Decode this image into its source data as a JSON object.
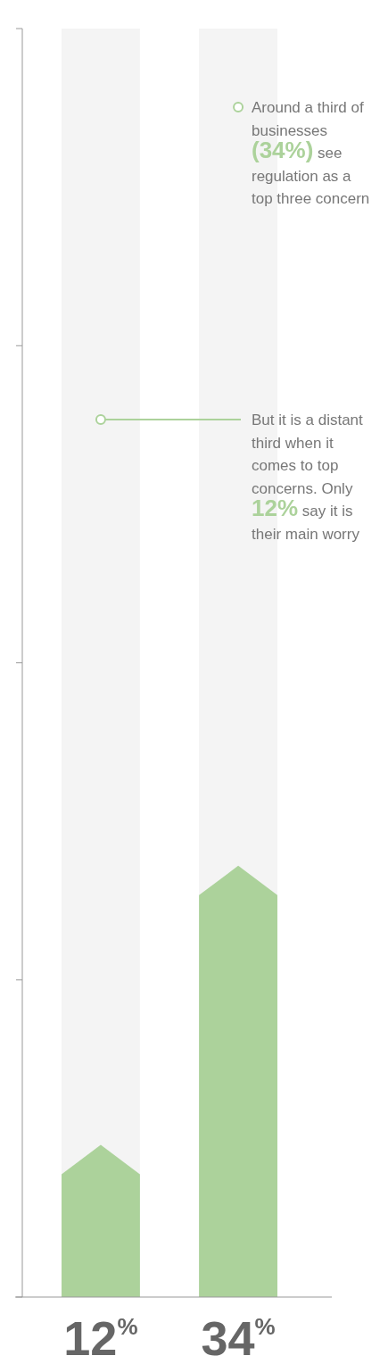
{
  "chart_data": {
    "type": "bar",
    "categories": [
      null,
      null
    ],
    "values": [
      12,
      34
    ],
    "color": "#acd29b",
    "value_labels": [
      "12$^{%}$",
      "34$^{%}$"
    ],
    "ylim": [
      0,
      100
    ],
    "yticks": [
      {
        "value": 0,
        "label": null
      },
      {
        "value": 25,
        "label": null
      },
      {
        "value": 50,
        "label": null
      },
      {
        "value": 75,
        "label": null
      },
      {
        "value": 100,
        "label": null
      }
    ],
    "annotations": [
      "Around a third of businesses (34%) see regulation as a top three concern",
      "But it is a distant third when it comes to top concerns. Only 12% say it is their main worry"
    ]
  }
}
